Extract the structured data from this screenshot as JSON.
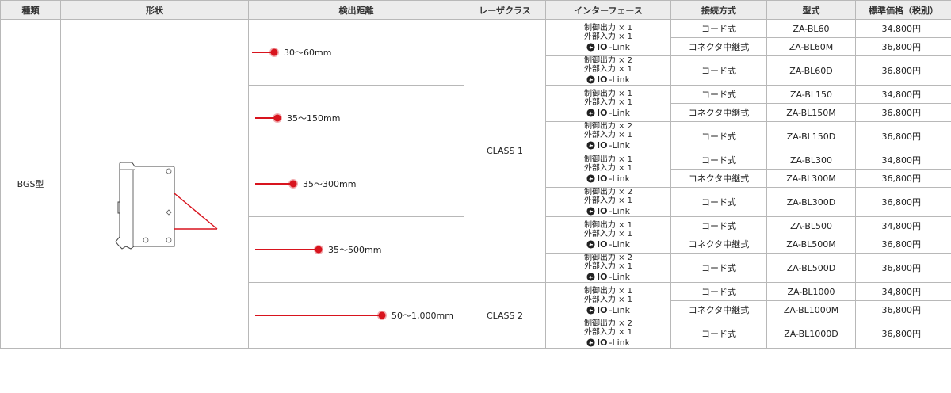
{
  "headers": {
    "kind": "種類",
    "shape": "形状",
    "distance": "検出距離",
    "laser": "レーザクラス",
    "interface": "インターフェース",
    "connection": "接続方式",
    "model": "型式",
    "price": "標準価格（税別）"
  },
  "product": "BGS型",
  "laser_classes": [
    "CLASS 1",
    "CLASS 2"
  ],
  "interfaces": {
    "type1": {
      "line1": "制御出力 × 1",
      "line2": "外部入力 × 1",
      "logo_bold": "IO",
      "logo_light": "-Link"
    },
    "type2": {
      "line1": "制御出力 × 2",
      "line2": "外部入力 × 1",
      "logo_bold": "IO",
      "logo_light": "-Link"
    }
  },
  "groups": [
    {
      "distance": "30～60mm",
      "beam_fraction": 0.06,
      "rows": [
        {
          "connection": "コード式",
          "model": "ZA-BL60",
          "price": "34,800円"
        },
        {
          "connection": "コネクタ中継式",
          "model": "ZA-BL60M",
          "price": "36,800円"
        },
        {
          "connection": "コード式",
          "model": "ZA-BL60D",
          "price": "36,800円"
        }
      ]
    },
    {
      "distance": "35～150mm",
      "beam_fraction": 0.15,
      "rows": [
        {
          "connection": "コード式",
          "model": "ZA-BL150",
          "price": "34,800円"
        },
        {
          "connection": "コネクタ中継式",
          "model": "ZA-BL150M",
          "price": "36,800円"
        },
        {
          "connection": "コード式",
          "model": "ZA-BL150D",
          "price": "36,800円"
        }
      ]
    },
    {
      "distance": "35～300mm",
      "beam_fraction": 0.3,
      "rows": [
        {
          "connection": "コード式",
          "model": "ZA-BL300",
          "price": "34,800円"
        },
        {
          "connection": "コネクタ中継式",
          "model": "ZA-BL300M",
          "price": "36,800円"
        },
        {
          "connection": "コード式",
          "model": "ZA-BL300D",
          "price": "36,800円"
        }
      ]
    },
    {
      "distance": "35～500mm",
      "beam_fraction": 0.5,
      "rows": [
        {
          "connection": "コード式",
          "model": "ZA-BL500",
          "price": "34,800円"
        },
        {
          "connection": "コネクタ中継式",
          "model": "ZA-BL500M",
          "price": "36,800円"
        },
        {
          "connection": "コード式",
          "model": "ZA-BL500D",
          "price": "36,800円"
        }
      ]
    },
    {
      "distance": "50～1,000mm",
      "beam_fraction": 1.0,
      "rows": [
        {
          "connection": "コード式",
          "model": "ZA-BL1000",
          "price": "34,800円"
        },
        {
          "connection": "コネクタ中継式",
          "model": "ZA-BL1000M",
          "price": "36,800円"
        },
        {
          "connection": "コード式",
          "model": "ZA-BL1000D",
          "price": "36,800円"
        }
      ]
    }
  ],
  "colors": {
    "beam": "#d8141e",
    "header_bg": "#ececec",
    "border": "#b8b8b8"
  },
  "icons": {
    "io_link": "io-link-logo-icon",
    "sensor": "sensor-outline-drawing"
  }
}
